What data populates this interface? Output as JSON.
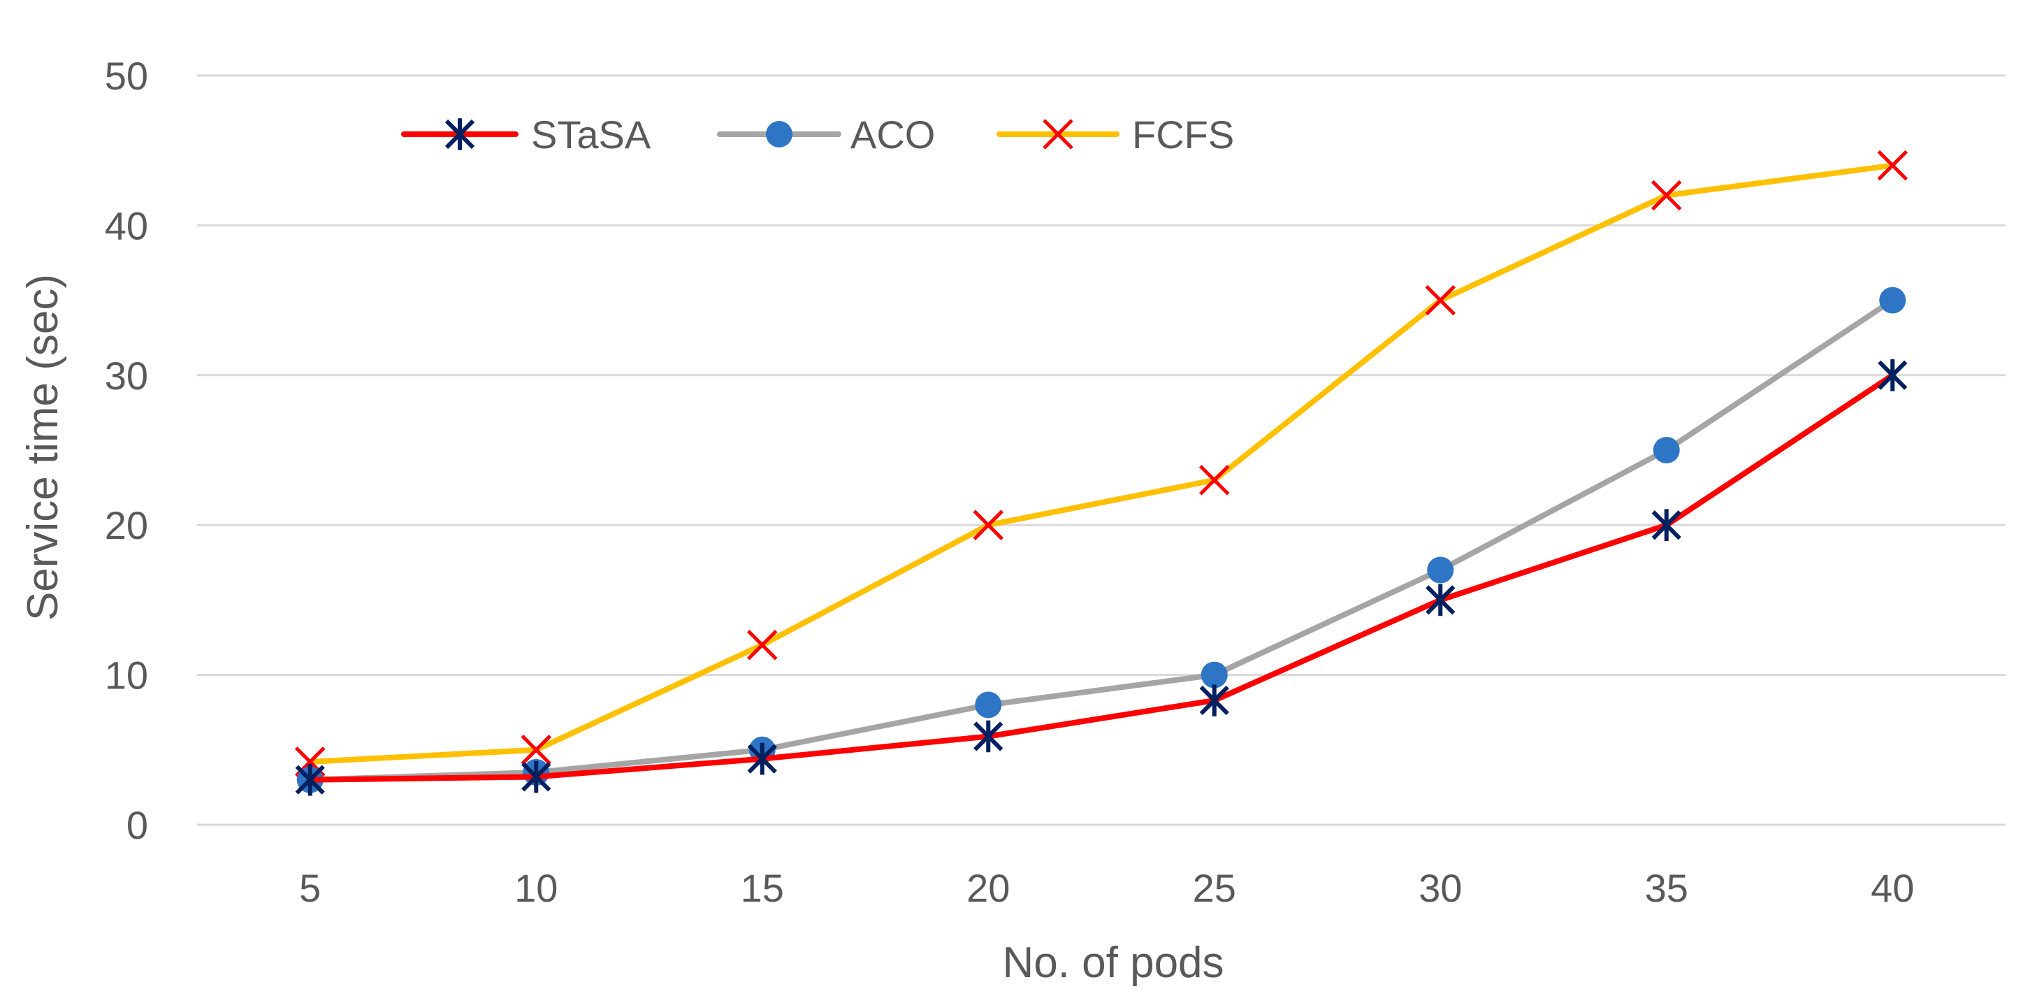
{
  "chart_data": {
    "type": "line",
    "title": "",
    "xlabel": "No. of pods",
    "ylabel": "Service time (sec)",
    "categories": [
      "5",
      "10",
      "15",
      "20",
      "25",
      "30",
      "35",
      "40"
    ],
    "ylim": [
      0,
      50
    ],
    "yticks": [
      "0",
      "10",
      "20",
      "30",
      "40",
      "50"
    ],
    "grid": true,
    "legend_position": "top-left",
    "series": [
      {
        "name": "STaSA",
        "values": [
          3,
          3.2,
          4.4,
          5.9,
          8.3,
          15,
          20,
          30
        ],
        "line_color": "#FF0000",
        "marker": "asterisk",
        "marker_color": "#002060"
      },
      {
        "name": "ACO",
        "values": [
          3,
          3.5,
          5,
          8,
          10,
          17,
          25,
          35
        ],
        "line_color": "#A5A5A5",
        "marker": "circle",
        "marker_color": "#2E75C6"
      },
      {
        "name": "FCFS",
        "values": [
          4.2,
          5,
          12,
          20,
          23,
          35,
          42,
          44
        ],
        "line_color": "#FFC000",
        "marker": "x",
        "marker_color": "#FF0000"
      }
    ],
    "gridline_color": "#D9D9D9",
    "text_color": "#595959"
  }
}
